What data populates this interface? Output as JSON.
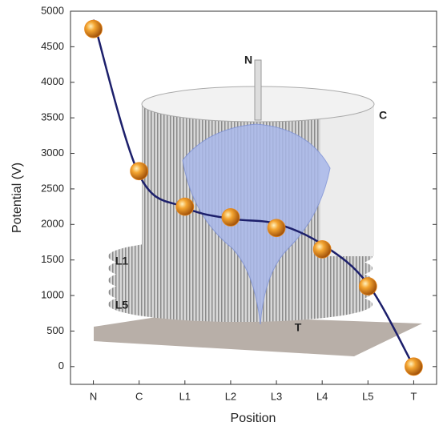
{
  "chart_data": {
    "type": "scatter_line",
    "y_label": "Potential (V)",
    "x_label": "Position",
    "categories": [
      "N",
      "C",
      "L1",
      "L2",
      "L3",
      "L4",
      "L5",
      "T"
    ],
    "series": [
      {
        "type": "scatter",
        "color": "#e8881c",
        "values": [
          4750,
          2750,
          2250,
          2100,
          1950,
          1650,
          1130,
          0
        ]
      },
      {
        "type": "line",
        "color": "#1c1f6b",
        "values": [
          4880,
          2700,
          2240,
          2080,
          2010,
          1720,
          1160,
          0
        ]
      }
    ],
    "ylim": [
      -250,
      5000
    ],
    "yticks": [
      0,
      500,
      1000,
      1500,
      2000,
      2500,
      3000,
      3500,
      4000,
      4500,
      5000
    ],
    "annotations": [
      "N",
      "C",
      "L1",
      "L5",
      "T"
    ]
  }
}
